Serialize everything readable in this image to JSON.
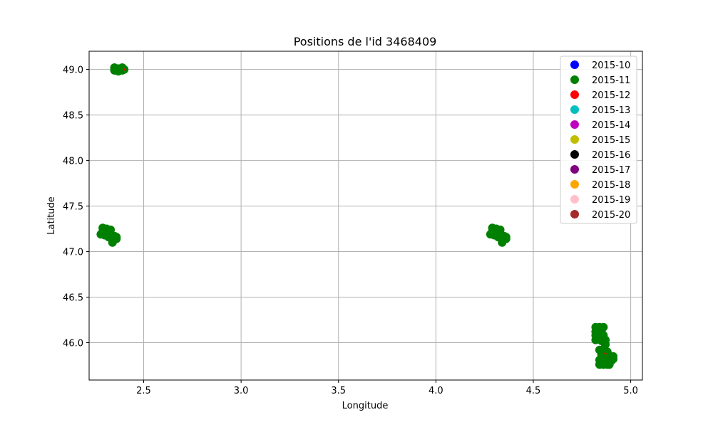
{
  "chart_data": {
    "type": "scatter",
    "title": "Positions de l'id 3468409",
    "xlabel": "Longitude",
    "ylabel": "Latitude",
    "xlim": [
      2.22,
      5.06
    ],
    "ylim": [
      45.59,
      49.2
    ],
    "xticks": [
      2.5,
      3.0,
      3.5,
      4.0,
      4.5,
      5.0
    ],
    "xtick_labels": [
      "2.5",
      "3.0",
      "3.5",
      "4.0",
      "4.5",
      "5.0"
    ],
    "yticks": [
      46.0,
      46.5,
      47.0,
      47.5,
      48.0,
      48.5,
      49.0
    ],
    "ytick_labels": [
      "46.0",
      "46.5",
      "47.0",
      "47.5",
      "48.0",
      "48.5",
      "49.0"
    ],
    "grid": true,
    "legend_position": "top-right",
    "series": [
      {
        "name": "2015-10",
        "color": "#0000ff",
        "points": []
      },
      {
        "name": "2015-11",
        "color": "#008000",
        "points": [
          [
            2.35,
            48.99
          ],
          [
            2.35,
            49.02
          ],
          [
            2.37,
            48.98
          ],
          [
            2.37,
            49.01
          ],
          [
            2.39,
            48.99
          ],
          [
            2.39,
            49.02
          ],
          [
            2.4,
            49.0
          ],
          [
            2.28,
            47.19
          ],
          [
            2.29,
            47.22
          ],
          [
            2.29,
            47.26
          ],
          [
            2.3,
            47.18
          ],
          [
            2.31,
            47.21
          ],
          [
            2.31,
            47.25
          ],
          [
            2.32,
            47.16
          ],
          [
            2.33,
            47.2
          ],
          [
            2.33,
            47.24
          ],
          [
            2.34,
            47.13
          ],
          [
            2.34,
            47.1
          ],
          [
            2.35,
            47.17
          ],
          [
            2.36,
            47.14
          ],
          [
            2.36,
            47.16
          ],
          [
            4.28,
            47.19
          ],
          [
            4.29,
            47.22
          ],
          [
            4.29,
            47.26
          ],
          [
            4.3,
            47.18
          ],
          [
            4.31,
            47.21
          ],
          [
            4.31,
            47.25
          ],
          [
            4.32,
            47.16
          ],
          [
            4.33,
            47.2
          ],
          [
            4.33,
            47.24
          ],
          [
            4.34,
            47.13
          ],
          [
            4.34,
            47.1
          ],
          [
            4.35,
            47.17
          ],
          [
            4.36,
            47.14
          ],
          [
            4.36,
            47.16
          ],
          [
            4.82,
            46.17
          ],
          [
            4.82,
            46.12
          ],
          [
            4.82,
            46.08
          ],
          [
            4.82,
            46.03
          ],
          [
            4.83,
            46.15
          ],
          [
            4.83,
            46.1
          ],
          [
            4.84,
            46.05
          ],
          [
            4.84,
            46.17
          ],
          [
            4.85,
            46.12
          ],
          [
            4.85,
            46.02
          ],
          [
            4.86,
            46.17
          ],
          [
            4.86,
            46.08
          ],
          [
            4.87,
            45.98
          ],
          [
            4.87,
            46.03
          ],
          [
            4.84,
            45.92
          ],
          [
            4.86,
            45.93
          ],
          [
            4.88,
            45.9
          ],
          [
            4.85,
            45.87
          ],
          [
            4.87,
            45.85
          ],
          [
            4.89,
            45.85
          ],
          [
            4.91,
            45.85
          ],
          [
            4.91,
            45.82
          ],
          [
            4.84,
            45.81
          ],
          [
            4.86,
            45.8
          ],
          [
            4.88,
            45.8
          ],
          [
            4.9,
            45.8
          ],
          [
            4.84,
            45.76
          ],
          [
            4.86,
            45.76
          ],
          [
            4.88,
            45.76
          ],
          [
            4.89,
            45.76
          ],
          [
            4.89,
            45.79
          ]
        ]
      },
      {
        "name": "2015-12",
        "color": "#ff0000",
        "points": [
          [
            4.87,
            45.88
          ],
          [
            2.4,
            49.0
          ]
        ]
      },
      {
        "name": "2015-13",
        "color": "#00bfbf",
        "points": []
      },
      {
        "name": "2015-14",
        "color": "#bf00bf",
        "points": []
      },
      {
        "name": "2015-15",
        "color": "#bfbf00",
        "points": []
      },
      {
        "name": "2015-16",
        "color": "#000000",
        "points": []
      },
      {
        "name": "2015-17",
        "color": "#800080",
        "points": []
      },
      {
        "name": "2015-18",
        "color": "#ffa500",
        "points": []
      },
      {
        "name": "2015-19",
        "color": "#ffc0cb",
        "points": []
      },
      {
        "name": "2015-20",
        "color": "#a52a2a",
        "points": []
      }
    ]
  }
}
